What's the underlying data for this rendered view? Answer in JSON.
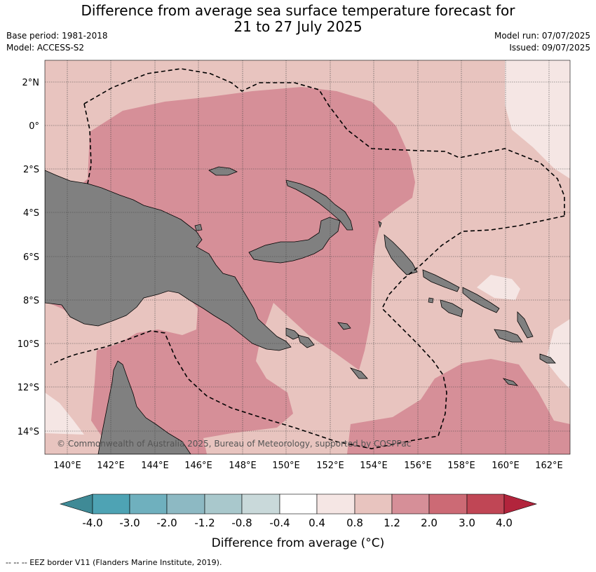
{
  "title_line1": "Difference from average sea surface temperature forecast for",
  "title_line2": "21 to 27 July 2025",
  "base_period": "Base period: 1981-2018",
  "model": "Model: ACCESS-S2",
  "model_run": "Model run: 07/07/2025",
  "issued": "Issued: 09/07/2025",
  "copyright": "© Commonwealth of Australia 2025, Bureau of Meteorology, supported by COSPPac",
  "lat_labels": [
    "2°N",
    "0°",
    "2°S",
    "4°S",
    "6°S",
    "8°S",
    "10°S",
    "12°S",
    "14°S"
  ],
  "lon_labels": [
    "140°E",
    "142°E",
    "144°E",
    "146°E",
    "148°E",
    "150°E",
    "152°E",
    "154°E",
    "156°E",
    "158°E",
    "160°E",
    "162°E"
  ],
  "colorbar": {
    "title": "Difference from average (°C)",
    "tick_labels": [
      "-4.0",
      "-3.0",
      "-2.0",
      "-1.2",
      "-0.8",
      "-0.4",
      "0.4",
      "0.8",
      "1.2",
      "2.0",
      "3.0",
      "4.0"
    ],
    "colors": [
      "#3f8a96",
      "#4ea3b4",
      "#6fb0be",
      "#8db9c3",
      "#a9c8cc",
      "#c9d9da",
      "#ffffff",
      "#f5e6e4",
      "#e8c4bf",
      "#d68f98",
      "#cc6a75",
      "#c04655",
      "#b2243c"
    ]
  },
  "footnote": "--  --  -- EEZ border V11 (Flanders Marine Institute, 2019)."
}
